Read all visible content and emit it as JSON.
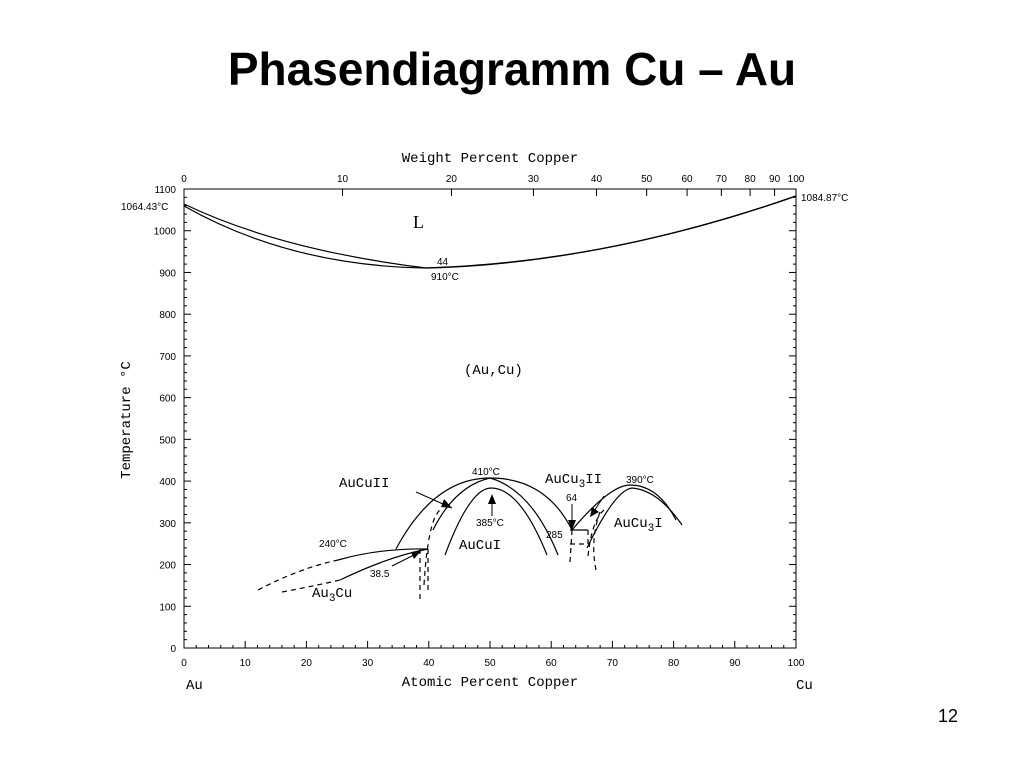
{
  "slide": {
    "title": "Phasendiagramm Cu – Au",
    "page_number": "12"
  },
  "axes": {
    "top_label": "Weight Percent Copper",
    "bottom_label": "Atomic Percent Copper",
    "y_label": "Temperature °C",
    "x_ticks": [
      "0",
      "10",
      "20",
      "30",
      "40",
      "50",
      "60",
      "70",
      "80",
      "90",
      "100"
    ],
    "y_ticks": [
      "0",
      "100",
      "200",
      "300",
      "400",
      "500",
      "600",
      "700",
      "800",
      "900",
      "1000",
      "1100"
    ],
    "top_ticks": [
      "0",
      "10",
      "20",
      "30",
      "40",
      "50",
      "60",
      "70",
      "80",
      "90",
      "100"
    ],
    "left_element": "Au",
    "right_element": "Cu"
  },
  "labels": {
    "au_melting": "1064.43°C",
    "cu_melting": "1084.87°C",
    "liquid": "L",
    "min_comp": "44",
    "min_temp": "910°C",
    "solid_solution": "(Au,Cu)",
    "aucu_ii": "AuCuII",
    "aucu_i": "AuCuI",
    "t410": "410°C",
    "t385": "385°C",
    "t240": "240°C",
    "c385": "38.5",
    "au3cu_base": "Au",
    "au3cu_sub": "3",
    "au3cu_end": "Cu",
    "aucu3ii_base": "AuCu",
    "aucu3ii_sub": "3",
    "aucu3ii_end": "II",
    "aucu3i_base": "AuCu",
    "aucu3i_sub": "3",
    "aucu3i_end": "I",
    "t390": "390°C",
    "c64": "64",
    "t285": "285"
  },
  "diagram_data": {
    "x_unit": "atomic percent Cu",
    "y_unit": "°C",
    "x_range": [
      0,
      100
    ],
    "y_range": [
      0,
      1100
    ],
    "weight_percent_tick_positions_at_pct": [
      0,
      25.9,
      43.7,
      57.1,
      67.4,
      75.6,
      82.2,
      87.8,
      92.5,
      96.5,
      100
    ],
    "liquidus": [
      [
        0,
        1064.43
      ],
      [
        10,
        1000
      ],
      [
        20,
        950
      ],
      [
        30,
        921
      ],
      [
        44,
        910
      ],
      [
        55,
        920
      ],
      [
        70,
        960
      ],
      [
        85,
        1020
      ],
      [
        100,
        1084.87
      ]
    ],
    "solidus": [
      [
        0,
        1064.43
      ],
      [
        10,
        990
      ],
      [
        20,
        945
      ],
      [
        30,
        918
      ],
      [
        44,
        910
      ],
      [
        55,
        915
      ],
      [
        70,
        945
      ],
      [
        85,
        1000
      ],
      [
        100,
        1084.87
      ]
    ],
    "invariant_points": [
      {
        "name": "congruent_minimum",
        "x": 44,
        "t": 910
      },
      {
        "name": "AuCuII_max",
        "x": 50,
        "t": 410
      },
      {
        "name": "AuCuI_max",
        "x": 50,
        "t": 385
      },
      {
        "name": "AuCu3_max",
        "x": 75,
        "t": 390
      },
      {
        "name": "Au3Cu_max",
        "x": 25,
        "t": 240
      },
      {
        "name": "eutectoid",
        "x": 64,
        "t": 285
      }
    ]
  },
  "colors": {
    "line": "#000000",
    "background": "#ffffff"
  }
}
